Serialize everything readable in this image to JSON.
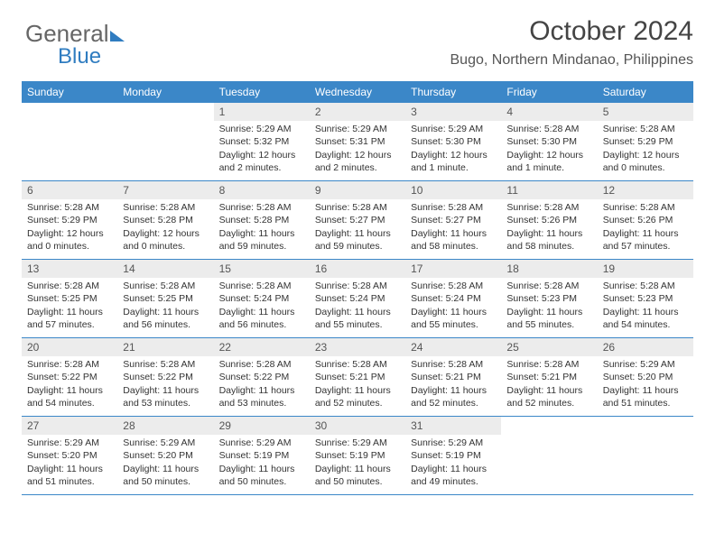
{
  "logo": {
    "text1": "General",
    "text2": "Blue"
  },
  "title": "October 2024",
  "subtitle": "Bugo, Northern Mindanao, Philippines",
  "colors": {
    "header_bg": "#3b87c8",
    "header_text": "#ffffff",
    "daynum_bg": "#ececec",
    "border": "#3b87c8",
    "logo_accent": "#2f7cc0"
  },
  "typography": {
    "title_fontsize": 30,
    "subtitle_fontsize": 16,
    "header_fontsize": 12,
    "body_fontsize": 10.5
  },
  "dayHeaders": [
    "Sunday",
    "Monday",
    "Tuesday",
    "Wednesday",
    "Thursday",
    "Friday",
    "Saturday"
  ],
  "weeks": [
    [
      {
        "n": "",
        "lines": []
      },
      {
        "n": "",
        "lines": []
      },
      {
        "n": "1",
        "lines": [
          "Sunrise: 5:29 AM",
          "Sunset: 5:32 PM",
          "Daylight: 12 hours and 2 minutes."
        ]
      },
      {
        "n": "2",
        "lines": [
          "Sunrise: 5:29 AM",
          "Sunset: 5:31 PM",
          "Daylight: 12 hours and 2 minutes."
        ]
      },
      {
        "n": "3",
        "lines": [
          "Sunrise: 5:29 AM",
          "Sunset: 5:30 PM",
          "Daylight: 12 hours and 1 minute."
        ]
      },
      {
        "n": "4",
        "lines": [
          "Sunrise: 5:28 AM",
          "Sunset: 5:30 PM",
          "Daylight: 12 hours and 1 minute."
        ]
      },
      {
        "n": "5",
        "lines": [
          "Sunrise: 5:28 AM",
          "Sunset: 5:29 PM",
          "Daylight: 12 hours and 0 minutes."
        ]
      }
    ],
    [
      {
        "n": "6",
        "lines": [
          "Sunrise: 5:28 AM",
          "Sunset: 5:29 PM",
          "Daylight: 12 hours and 0 minutes."
        ]
      },
      {
        "n": "7",
        "lines": [
          "Sunrise: 5:28 AM",
          "Sunset: 5:28 PM",
          "Daylight: 12 hours and 0 minutes."
        ]
      },
      {
        "n": "8",
        "lines": [
          "Sunrise: 5:28 AM",
          "Sunset: 5:28 PM",
          "Daylight: 11 hours and 59 minutes."
        ]
      },
      {
        "n": "9",
        "lines": [
          "Sunrise: 5:28 AM",
          "Sunset: 5:27 PM",
          "Daylight: 11 hours and 59 minutes."
        ]
      },
      {
        "n": "10",
        "lines": [
          "Sunrise: 5:28 AM",
          "Sunset: 5:27 PM",
          "Daylight: 11 hours and 58 minutes."
        ]
      },
      {
        "n": "11",
        "lines": [
          "Sunrise: 5:28 AM",
          "Sunset: 5:26 PM",
          "Daylight: 11 hours and 58 minutes."
        ]
      },
      {
        "n": "12",
        "lines": [
          "Sunrise: 5:28 AM",
          "Sunset: 5:26 PM",
          "Daylight: 11 hours and 57 minutes."
        ]
      }
    ],
    [
      {
        "n": "13",
        "lines": [
          "Sunrise: 5:28 AM",
          "Sunset: 5:25 PM",
          "Daylight: 11 hours and 57 minutes."
        ]
      },
      {
        "n": "14",
        "lines": [
          "Sunrise: 5:28 AM",
          "Sunset: 5:25 PM",
          "Daylight: 11 hours and 56 minutes."
        ]
      },
      {
        "n": "15",
        "lines": [
          "Sunrise: 5:28 AM",
          "Sunset: 5:24 PM",
          "Daylight: 11 hours and 56 minutes."
        ]
      },
      {
        "n": "16",
        "lines": [
          "Sunrise: 5:28 AM",
          "Sunset: 5:24 PM",
          "Daylight: 11 hours and 55 minutes."
        ]
      },
      {
        "n": "17",
        "lines": [
          "Sunrise: 5:28 AM",
          "Sunset: 5:24 PM",
          "Daylight: 11 hours and 55 minutes."
        ]
      },
      {
        "n": "18",
        "lines": [
          "Sunrise: 5:28 AM",
          "Sunset: 5:23 PM",
          "Daylight: 11 hours and 55 minutes."
        ]
      },
      {
        "n": "19",
        "lines": [
          "Sunrise: 5:28 AM",
          "Sunset: 5:23 PM",
          "Daylight: 11 hours and 54 minutes."
        ]
      }
    ],
    [
      {
        "n": "20",
        "lines": [
          "Sunrise: 5:28 AM",
          "Sunset: 5:22 PM",
          "Daylight: 11 hours and 54 minutes."
        ]
      },
      {
        "n": "21",
        "lines": [
          "Sunrise: 5:28 AM",
          "Sunset: 5:22 PM",
          "Daylight: 11 hours and 53 minutes."
        ]
      },
      {
        "n": "22",
        "lines": [
          "Sunrise: 5:28 AM",
          "Sunset: 5:22 PM",
          "Daylight: 11 hours and 53 minutes."
        ]
      },
      {
        "n": "23",
        "lines": [
          "Sunrise: 5:28 AM",
          "Sunset: 5:21 PM",
          "Daylight: 11 hours and 52 minutes."
        ]
      },
      {
        "n": "24",
        "lines": [
          "Sunrise: 5:28 AM",
          "Sunset: 5:21 PM",
          "Daylight: 11 hours and 52 minutes."
        ]
      },
      {
        "n": "25",
        "lines": [
          "Sunrise: 5:28 AM",
          "Sunset: 5:21 PM",
          "Daylight: 11 hours and 52 minutes."
        ]
      },
      {
        "n": "26",
        "lines": [
          "Sunrise: 5:29 AM",
          "Sunset: 5:20 PM",
          "Daylight: 11 hours and 51 minutes."
        ]
      }
    ],
    [
      {
        "n": "27",
        "lines": [
          "Sunrise: 5:29 AM",
          "Sunset: 5:20 PM",
          "Daylight: 11 hours and 51 minutes."
        ]
      },
      {
        "n": "28",
        "lines": [
          "Sunrise: 5:29 AM",
          "Sunset: 5:20 PM",
          "Daylight: 11 hours and 50 minutes."
        ]
      },
      {
        "n": "29",
        "lines": [
          "Sunrise: 5:29 AM",
          "Sunset: 5:19 PM",
          "Daylight: 11 hours and 50 minutes."
        ]
      },
      {
        "n": "30",
        "lines": [
          "Sunrise: 5:29 AM",
          "Sunset: 5:19 PM",
          "Daylight: 11 hours and 50 minutes."
        ]
      },
      {
        "n": "31",
        "lines": [
          "Sunrise: 5:29 AM",
          "Sunset: 5:19 PM",
          "Daylight: 11 hours and 49 minutes."
        ]
      },
      {
        "n": "",
        "lines": []
      },
      {
        "n": "",
        "lines": []
      }
    ]
  ]
}
